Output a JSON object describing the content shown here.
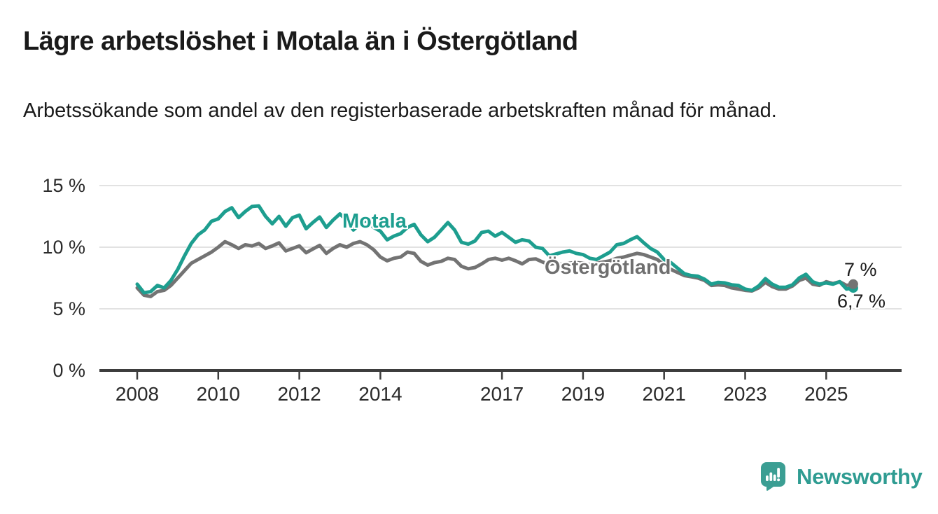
{
  "title": "Lägre arbetslöshet i Motala än i Östergötland",
  "subtitle": "Arbetssökande som andel av den registerbaserade arbetskraften månad för månad.",
  "branding": {
    "logo_text": "Newsworthy",
    "logo_icon": "newsworthy-speech-bubble-bars-icon"
  },
  "colors": {
    "motala": "#1d9e8f",
    "ostergotland": "#737373",
    "text": "#1a1a1a",
    "axis_text": "#2b2b2b",
    "gridline": "#e2e2e2",
    "axis_line": "#3d3d3d",
    "brand_teal": "#2f9c92"
  },
  "chart_data": {
    "type": "line",
    "title": "Lägre arbetslöshet i Motala än i Östergötland",
    "xlabel": "",
    "ylabel": "",
    "x_unit": "year",
    "x_start": 2008.0,
    "points_per_year": 6,
    "ylim": [
      0,
      15
    ],
    "grid": true,
    "legend_position": "inline-labels",
    "x_ticks": [
      2008,
      2010,
      2012,
      2014,
      2017,
      2019,
      2021,
      2023,
      2025
    ],
    "x_tick_labels": [
      "2008",
      "2010",
      "2012",
      "2014",
      "2017",
      "2019",
      "2021",
      "2023",
      "2025"
    ],
    "y_ticks": [
      0,
      5,
      10,
      15
    ],
    "y_tick_labels": [
      "0 %",
      "5 %",
      "10 %",
      "15 %"
    ],
    "series": [
      {
        "name": "Motala",
        "color": "#1d9e8f",
        "end_label": "6,7 %",
        "end_value": 6.7,
        "values": [
          7.0,
          6.3,
          6.4,
          6.9,
          6.7,
          7.3,
          8.2,
          9.3,
          10.3,
          11.0,
          11.4,
          12.1,
          12.3,
          12.9,
          13.2,
          12.4,
          12.9,
          13.3,
          13.35,
          12.5,
          11.9,
          12.5,
          11.7,
          12.4,
          12.6,
          11.5,
          12.0,
          12.45,
          11.6,
          12.2,
          12.7,
          12.2,
          11.4,
          11.9,
          12.2,
          11.6,
          11.3,
          10.6,
          10.9,
          11.1,
          11.6,
          11.85,
          11.0,
          10.45,
          10.8,
          11.4,
          12.0,
          11.4,
          10.4,
          10.25,
          10.5,
          11.2,
          11.3,
          10.9,
          11.2,
          10.8,
          10.4,
          10.6,
          10.5,
          10.0,
          9.9,
          9.3,
          9.45,
          9.6,
          9.7,
          9.5,
          9.4,
          9.1,
          9.0,
          9.3,
          9.6,
          10.2,
          10.3,
          10.6,
          10.85,
          10.35,
          9.9,
          9.6,
          9.0,
          8.75,
          8.3,
          7.85,
          7.7,
          7.65,
          7.4,
          7.0,
          7.15,
          7.1,
          6.95,
          6.9,
          6.6,
          6.5,
          6.85,
          7.45,
          7.0,
          6.75,
          6.75,
          6.95,
          7.5,
          7.8,
          7.2,
          7.0,
          7.1,
          7.0,
          7.2,
          6.6,
          6.7
        ]
      },
      {
        "name": "Östergötland",
        "color": "#737373",
        "end_label": "7 %",
        "end_value": 7.0,
        "values": [
          6.7,
          6.1,
          6.0,
          6.4,
          6.5,
          6.9,
          7.5,
          8.1,
          8.7,
          9.0,
          9.3,
          9.6,
          10.0,
          10.45,
          10.2,
          9.9,
          10.2,
          10.1,
          10.3,
          9.9,
          10.1,
          10.35,
          9.7,
          9.9,
          10.1,
          9.55,
          9.85,
          10.15,
          9.5,
          9.9,
          10.2,
          10.0,
          10.3,
          10.45,
          10.2,
          9.8,
          9.2,
          8.9,
          9.1,
          9.2,
          9.6,
          9.5,
          8.85,
          8.55,
          8.75,
          8.85,
          9.1,
          9.0,
          8.45,
          8.25,
          8.35,
          8.65,
          9.0,
          9.1,
          8.95,
          9.1,
          8.9,
          8.65,
          9.0,
          9.05,
          8.8,
          8.6,
          8.7,
          8.6,
          8.7,
          8.75,
          8.7,
          8.6,
          8.7,
          8.8,
          8.9,
          9.1,
          9.2,
          9.35,
          9.5,
          9.4,
          9.2,
          9.0,
          8.55,
          8.2,
          7.95,
          7.7,
          7.6,
          7.5,
          7.3,
          6.9,
          6.95,
          6.9,
          6.7,
          6.6,
          6.5,
          6.45,
          6.7,
          7.15,
          6.8,
          6.6,
          6.6,
          6.85,
          7.3,
          7.5,
          7.0,
          6.9,
          7.2,
          7.05,
          7.2,
          6.9,
          7.0
        ]
      }
    ]
  }
}
